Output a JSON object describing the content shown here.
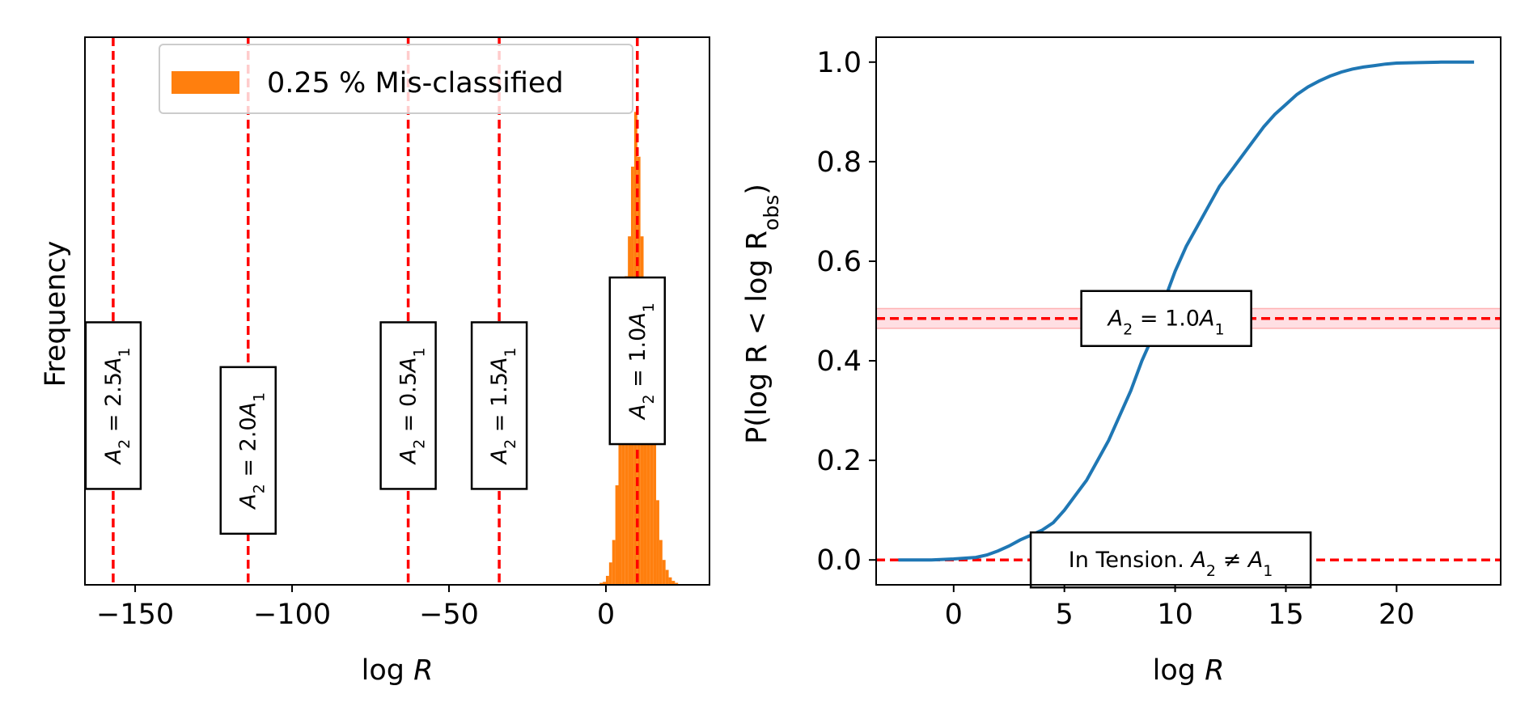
{
  "chart_data": [
    {
      "type": "histogram",
      "title": "",
      "xlabel": "log R",
      "ylabel": "Frequency",
      "xlim": [
        -166,
        33
      ],
      "ylim": [
        0,
        1.1
      ],
      "xticks": [
        -150,
        -100,
        -50,
        0
      ],
      "xtick_labels": [
        "−150",
        "−100",
        "−50",
        "0"
      ],
      "legend": {
        "label": "0.25 % Mis-classified",
        "placement": "upper-center",
        "color": "#ff7f0e"
      },
      "bar_color": "#ff7f0e",
      "histogram": {
        "bin_width": 1.0,
        "bins": [
          {
            "x": -2.0,
            "v": 0.004
          },
          {
            "x": -1.0,
            "v": 0.006
          },
          {
            "x": 0.0,
            "v": 0.018
          },
          {
            "x": 1.0,
            "v": 0.045
          },
          {
            "x": 2.0,
            "v": 0.09
          },
          {
            "x": 3.0,
            "v": 0.2
          },
          {
            "x": 4.0,
            "v": 0.34
          },
          {
            "x": 5.0,
            "v": 0.47
          },
          {
            "x": 6.0,
            "v": 0.62
          },
          {
            "x": 7.0,
            "v": 0.7
          },
          {
            "x": 8.0,
            "v": 0.84
          },
          {
            "x": 9.0,
            "v": 0.95
          },
          {
            "x": 10.0,
            "v": 0.86
          },
          {
            "x": 11.0,
            "v": 0.7
          },
          {
            "x": 12.0,
            "v": 0.58
          },
          {
            "x": 13.0,
            "v": 0.48
          },
          {
            "x": 14.0,
            "v": 0.3
          },
          {
            "x": 15.0,
            "v": 0.29
          },
          {
            "x": 16.0,
            "v": 0.17
          },
          {
            "x": 17.0,
            "v": 0.09
          },
          {
            "x": 18.0,
            "v": 0.05
          },
          {
            "x": 19.0,
            "v": 0.03
          },
          {
            "x": 20.0,
            "v": 0.015
          },
          {
            "x": 21.0,
            "v": 0.008
          },
          {
            "x": 22.0,
            "v": 0.004
          }
        ]
      },
      "vlines": [
        {
          "x": -157,
          "label_pre": "A",
          "sub1": "2",
          "label_mid": " = 2.5A",
          "sub2": "1",
          "label_y": 0.36
        },
        {
          "x": -114,
          "label_pre": "A",
          "sub1": "2",
          "label_mid": " = 2.0A",
          "sub2": "1",
          "label_y": 0.27
        },
        {
          "x": -63,
          "label_pre": "A",
          "sub1": "2",
          "label_mid": " = 0.5A",
          "sub2": "1",
          "label_y": 0.36
        },
        {
          "x": -34,
          "label_pre": "A",
          "sub1": "2",
          "label_mid": " = 1.5A",
          "sub2": "1",
          "label_y": 0.36
        },
        {
          "x": 10,
          "label_pre": "A",
          "sub1": "2",
          "label_mid": " = 1.0A",
          "sub2": "1",
          "label_y": 0.45
        }
      ],
      "line_color": "#ff0000"
    },
    {
      "type": "line",
      "title": "",
      "xlabel": "log R",
      "ylabel_parts": {
        "pre": "P(log R < log R",
        "sub": "obs",
        "post": ")"
      },
      "xlim": [
        -3.5,
        24.7
      ],
      "ylim": [
        -0.05,
        1.05
      ],
      "xticks": [
        0,
        5,
        10,
        15,
        20
      ],
      "xtick_labels": [
        "0",
        "5",
        "10",
        "15",
        "20"
      ],
      "yticks": [
        0.0,
        0.2,
        0.4,
        0.6,
        0.8,
        1.0
      ],
      "ytick_labels": [
        "0.0",
        "0.2",
        "0.4",
        "0.6",
        "0.8",
        "1.0"
      ],
      "series": [
        {
          "color": "#1f77b4",
          "x": [
            -2.5,
            -1,
            0,
            1,
            1.5,
            2,
            2.5,
            3,
            3.5,
            4,
            4.5,
            5,
            5.5,
            6,
            6.5,
            7,
            7.5,
            8,
            8.5,
            9,
            9.5,
            10,
            10.5,
            11,
            11.5,
            12,
            12.5,
            13,
            13.5,
            14,
            14.5,
            15,
            15.5,
            16,
            16.5,
            17,
            17.5,
            18,
            18.5,
            19,
            19.5,
            20,
            21,
            22,
            23.5
          ],
          "y": [
            0.0,
            0.0,
            0.002,
            0.005,
            0.01,
            0.018,
            0.028,
            0.04,
            0.05,
            0.06,
            0.075,
            0.1,
            0.13,
            0.16,
            0.2,
            0.24,
            0.29,
            0.34,
            0.4,
            0.45,
            0.52,
            0.58,
            0.63,
            0.67,
            0.71,
            0.75,
            0.78,
            0.81,
            0.84,
            0.87,
            0.895,
            0.915,
            0.935,
            0.95,
            0.962,
            0.972,
            0.98,
            0.986,
            0.99,
            0.993,
            0.996,
            0.998,
            0.999,
            1.0,
            1.0
          ]
        }
      ],
      "hlines": [
        {
          "y": 0.485,
          "band": [
            0.465,
            0.505
          ],
          "label_pre": "A",
          "sub1": "2",
          "label_mid": " = 1.0A",
          "sub2": "1",
          "label_x": 9.6
        },
        {
          "y": 0.0,
          "label_text": "In Tension. ",
          "label_pre": "A",
          "sub1": "2",
          "label_mid": " ≠ A",
          "sub2": "1",
          "label_x": 9.8
        }
      ],
      "line_color": "#ff0000",
      "band_color": "#ffc0c8"
    }
  ]
}
